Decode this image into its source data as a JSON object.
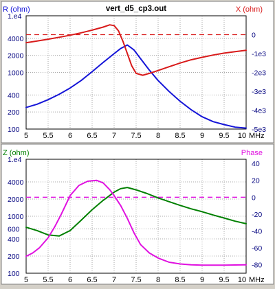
{
  "window": {
    "title": "vert_d5_cp3.out"
  },
  "colors": {
    "r": "#1515d8",
    "x": "#d81a1a",
    "z": "#008000",
    "phase": "#e010e0",
    "grid": "#a8a8a8",
    "axis_text": "#00007f",
    "bg": "#ffffff",
    "frame": "#d4d0c8"
  },
  "chart_data": [
    {
      "type": "line",
      "title": "vert_d5_cp3.out",
      "xlabel": "MHz",
      "x_ticks": [
        "5",
        "5.5",
        "6",
        "6.5",
        "7",
        "7.5",
        "8",
        "8.5",
        "9",
        "9.5",
        "10"
      ],
      "xlim": [
        5,
        10
      ],
      "left_axis": {
        "label": "R (ohm)",
        "scale": "log",
        "ylim": [
          100,
          10000
        ],
        "ticks": [
          {
            "v": 10000,
            "t": "1.e4"
          },
          {
            "v": 4000,
            "t": "4000"
          },
          {
            "v": 2000,
            "t": "2000"
          },
          {
            "v": 1000,
            "t": "1000"
          },
          {
            "v": 400,
            "t": "400"
          },
          {
            "v": 200,
            "t": "200"
          },
          {
            "v": 100,
            "t": "100"
          }
        ]
      },
      "right_axis": {
        "label": "X (ohm)",
        "scale": "linear",
        "ylim": [
          -5000,
          1000
        ],
        "ticks": [
          {
            "v": 0,
            "t": "0"
          },
          {
            "v": -1000,
            "t": "-1e3"
          },
          {
            "v": -2000,
            "t": "-2e3"
          },
          {
            "v": -3000,
            "t": "-3e3"
          },
          {
            "v": -4000,
            "t": "-4e3"
          },
          {
            "v": -5000,
            "t": "-5e3"
          }
        ]
      },
      "reference_line": {
        "axis": "right",
        "value": 0,
        "style": "dashed"
      },
      "series": [
        {
          "name": "R (ohm)",
          "axis": "left",
          "color_key": "r",
          "x": [
            5.0,
            5.25,
            5.5,
            5.75,
            6.0,
            6.25,
            6.5,
            6.75,
            7.0,
            7.15,
            7.3,
            7.45,
            7.6,
            7.8,
            8.0,
            8.25,
            8.5,
            8.75,
            9.0,
            9.25,
            9.5,
            9.75,
            10.0
          ],
          "y": [
            240,
            275,
            330,
            410,
            530,
            720,
            1030,
            1500,
            2150,
            2650,
            3050,
            2500,
            1750,
            1100,
            720,
            460,
            310,
            220,
            165,
            135,
            120,
            108,
            104
          ]
        },
        {
          "name": "X (ohm)",
          "axis": "right",
          "color_key": "x",
          "x": [
            5.0,
            5.25,
            5.5,
            5.75,
            6.0,
            6.25,
            6.5,
            6.75,
            6.9,
            7.0,
            7.1,
            7.2,
            7.3,
            7.4,
            7.5,
            7.65,
            7.8,
            8.0,
            8.25,
            8.5,
            8.75,
            9.0,
            9.25,
            9.5,
            9.75,
            10.0
          ],
          "y": [
            -430,
            -340,
            -240,
            -140,
            -30,
            100,
            240,
            400,
            520,
            480,
            200,
            -350,
            -1000,
            -1650,
            -2050,
            -2150,
            -2050,
            -1900,
            -1700,
            -1500,
            -1330,
            -1200,
            -1080,
            -980,
            -900,
            -830
          ]
        }
      ]
    },
    {
      "type": "line",
      "xlabel": "MHz",
      "x_ticks": [
        "5",
        "5.5",
        "6",
        "6.5",
        "7",
        "7.5",
        "8",
        "8.5",
        "9",
        "9.5",
        "10"
      ],
      "xlim": [
        5,
        10
      ],
      "left_axis": {
        "label": "Z (ohm)",
        "scale": "log",
        "ylim": [
          100,
          10000
        ],
        "ticks": [
          {
            "v": 10000,
            "t": "1.e4"
          },
          {
            "v": 4000,
            "t": "4000"
          },
          {
            "v": 2000,
            "t": "2000"
          },
          {
            "v": 1000,
            "t": "1000"
          },
          {
            "v": 600,
            "t": "600"
          },
          {
            "v": 400,
            "t": "400"
          },
          {
            "v": 200,
            "t": "200"
          },
          {
            "v": 100,
            "t": "100"
          }
        ]
      },
      "right_axis": {
        "label": "Phase",
        "scale": "linear",
        "ylim": [
          -90,
          45
        ],
        "ticks": [
          {
            "v": 40,
            "t": "40"
          },
          {
            "v": 20,
            "t": "20"
          },
          {
            "v": 0,
            "t": "0"
          },
          {
            "v": -20,
            "t": "-20"
          },
          {
            "v": -40,
            "t": "-40"
          },
          {
            "v": -60,
            "t": "-60"
          },
          {
            "v": -80,
            "t": "-80"
          }
        ]
      },
      "reference_line": {
        "axis": "right",
        "value": 0,
        "style": "dashed"
      },
      "series": [
        {
          "name": "Z (ohm)",
          "axis": "left",
          "color_key": "z",
          "x": [
            5.0,
            5.25,
            5.5,
            5.75,
            6.0,
            6.25,
            6.5,
            6.75,
            7.0,
            7.15,
            7.3,
            7.5,
            7.75,
            8.0,
            8.25,
            8.5,
            8.75,
            9.0,
            9.25,
            9.5,
            9.75,
            10.0
          ],
          "y": [
            640,
            560,
            470,
            450,
            560,
            850,
            1300,
            1900,
            2650,
            3050,
            3200,
            2900,
            2500,
            2100,
            1800,
            1550,
            1350,
            1200,
            1050,
            930,
            820,
            740
          ]
        },
        {
          "name": "Phase",
          "axis": "right",
          "color_key": "phase",
          "x": [
            5.0,
            5.15,
            5.3,
            5.5,
            5.65,
            5.8,
            6.0,
            6.2,
            6.4,
            6.6,
            6.75,
            6.9,
            7.0,
            7.15,
            7.3,
            7.45,
            7.6,
            7.8,
            8.0,
            8.25,
            8.5,
            8.75,
            9.0,
            9.5,
            10.0
          ],
          "y": [
            -70,
            -66,
            -60,
            -48,
            -35,
            -20,
            2,
            14,
            19,
            20,
            17,
            9,
            2,
            -10,
            -25,
            -42,
            -56,
            -66,
            -72,
            -77,
            -79,
            -80,
            -80.5,
            -80.5,
            -80
          ]
        }
      ]
    }
  ]
}
